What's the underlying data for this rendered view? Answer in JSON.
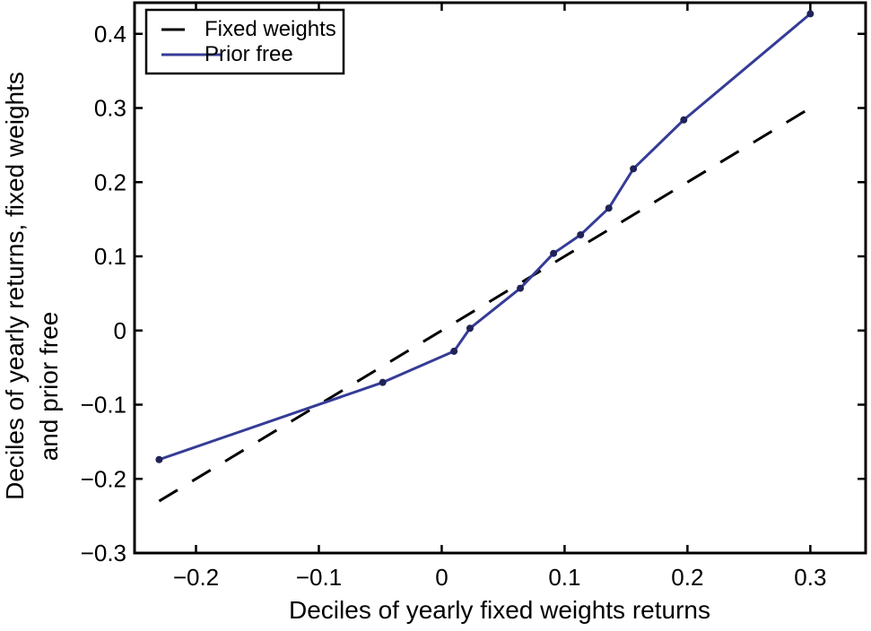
{
  "figure": {
    "background": "#ffffff",
    "text_color": "#000000"
  },
  "chart_data": {
    "type": "line",
    "title": "",
    "xlabel": "Deciles of yearly fixed weights returns",
    "ylabel": "Deciles of yearly returns, fixed weights and prior free",
    "ylabel_lines": [
      "Deciles of yearly returns, fixed weights",
      "and prior free"
    ],
    "xlim": [
      -0.25,
      0.345
    ],
    "ylim": [
      -0.3,
      0.442
    ],
    "x_ticks": [
      -0.2,
      -0.1,
      0,
      0.1,
      0.2,
      0.3
    ],
    "y_ticks": [
      -0.3,
      -0.2,
      -0.1,
      0,
      0.1,
      0.2,
      0.3,
      0.4
    ],
    "grid": false,
    "legend": {
      "position": "top-left",
      "entries": [
        {
          "label": "Fixed weights",
          "style": "dashed",
          "color": "#000000"
        },
        {
          "label": "Prior free",
          "style": "solid",
          "color": "#353c96"
        }
      ]
    },
    "series": [
      {
        "name": "Fixed weights",
        "style": "dashed",
        "color": "#000000",
        "marker": false,
        "x": [
          -0.23,
          0.3
        ],
        "y": [
          -0.23,
          0.3
        ]
      },
      {
        "name": "Prior free",
        "style": "solid",
        "color": "#353c96",
        "marker": true,
        "marker_color": "#202357",
        "x": [
          -0.23,
          -0.048,
          0.01,
          0.023,
          0.064,
          0.091,
          0.113,
          0.136,
          0.156,
          0.197,
          0.3
        ],
        "y": [
          -0.174,
          -0.07,
          -0.028,
          0.003,
          0.057,
          0.104,
          0.129,
          0.165,
          0.218,
          0.284,
          0.427
        ]
      }
    ]
  }
}
